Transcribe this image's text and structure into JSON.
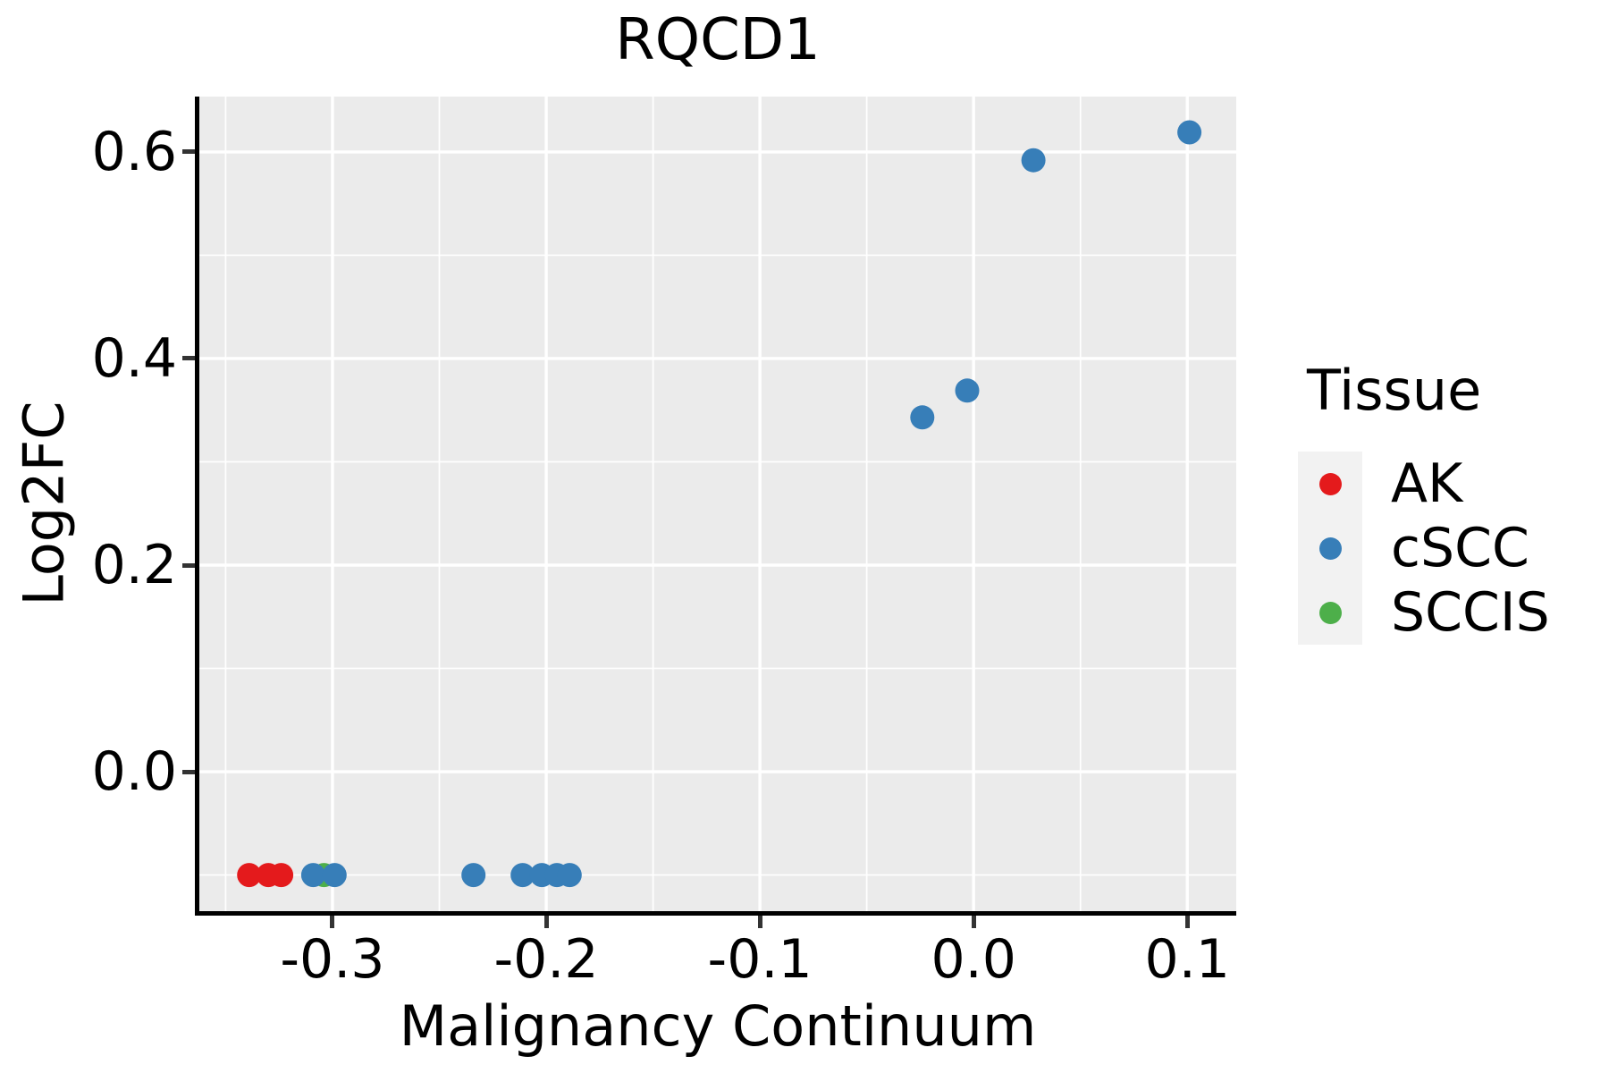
{
  "title": "RQCD1",
  "axes": {
    "x_label": "Malignancy Continuum",
    "y_label": "Log2FC"
  },
  "legend": {
    "title": "Tissue",
    "entries": [
      {
        "label": "AK",
        "color": "#E41A1C"
      },
      {
        "label": "cSCC",
        "color": "#377EB8"
      },
      {
        "label": "SCCIS",
        "color": "#4DAF4A"
      }
    ]
  },
  "panel_style": {
    "background": "#EBEBEB",
    "grid_color": "#FFFFFF",
    "axis_color": "#000000",
    "tick_color": "#333333",
    "legend_key_background": "#F2F2F2"
  },
  "chart_data": {
    "type": "scatter",
    "title": "RQCD1",
    "xlabel": "Malignancy Continuum",
    "ylabel": "Log2FC",
    "xlim": [
      -0.3623,
      0.1229
    ],
    "ylim": [
      -0.135,
      0.6536
    ],
    "grid": "major white + minor white on gray panel",
    "legend_position": "right",
    "point_radius_px": 13.5,
    "x_ticks": [
      {
        "value": -0.3,
        "label": "-0.3"
      },
      {
        "value": -0.2,
        "label": "-0.2"
      },
      {
        "value": -0.1,
        "label": "-0.1"
      },
      {
        "value": 0.0,
        "label": "0.0"
      },
      {
        "value": 0.1,
        "label": "0.1"
      }
    ],
    "y_ticks": [
      {
        "value": 0.0,
        "label": "0.0"
      },
      {
        "value": 0.2,
        "label": "0.2"
      },
      {
        "value": 0.4,
        "label": "0.4"
      },
      {
        "value": 0.6,
        "label": "0.6"
      }
    ],
    "x_minor_ticks": [
      -0.35,
      -0.25,
      -0.15,
      -0.05,
      0.05
    ],
    "y_minor_ticks": [
      -0.1,
      0.1,
      0.3,
      0.5
    ],
    "series": [
      {
        "name": "AK",
        "color": "#E41A1C",
        "points": [
          [
            -0.339,
            -0.1
          ],
          [
            -0.33,
            -0.1
          ],
          [
            -0.324,
            -0.1
          ]
        ]
      },
      {
        "name": "SCCIS",
        "color": "#4DAF4A",
        "points": [
          [
            -0.304,
            -0.1
          ]
        ]
      },
      {
        "name": "cSCC",
        "color": "#377EB8",
        "points": [
          [
            -0.309,
            -0.1
          ],
          [
            -0.299,
            -0.1
          ],
          [
            -0.234,
            -0.1
          ],
          [
            -0.211,
            -0.1
          ],
          [
            -0.202,
            -0.1
          ],
          [
            -0.195,
            -0.1
          ],
          [
            -0.189,
            -0.1
          ],
          [
            -0.024,
            0.343
          ],
          [
            -0.003,
            0.369
          ],
          [
            0.028,
            0.592
          ],
          [
            0.101,
            0.619
          ]
        ]
      }
    ]
  }
}
